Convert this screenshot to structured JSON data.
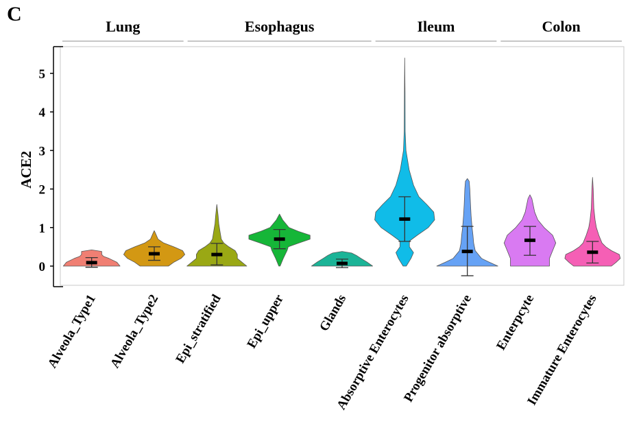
{
  "panel_label": "C",
  "chart_data": {
    "type": "violin",
    "ylabel": "ACE2",
    "ylim": [
      -0.55,
      5.6
    ],
    "yticks": [
      0,
      1,
      2,
      3,
      4,
      5
    ],
    "groups": [
      {
        "label": "Lung",
        "categories": [
          "Alveola_Type1",
          "Alveola_Type2"
        ]
      },
      {
        "label": "Esophagus",
        "categories": [
          "Epi_stratified",
          "Epi_upper",
          "Glands"
        ]
      },
      {
        "label": "Ileum",
        "categories": [
          "Absorptive Enterocytes",
          "Progenitor absorptive"
        ]
      },
      {
        "label": "Colon",
        "categories": [
          "Enterpcyte",
          "Immature Enterocytes"
        ]
      }
    ],
    "series": [
      {
        "category": "Alveola_Type1",
        "color": "#f07f73",
        "mean": 0.09,
        "err_low": -0.03,
        "err_high": 0.22,
        "shape": [
          [
            0.0,
            0.9
          ],
          [
            0.1,
            0.8
          ],
          [
            0.2,
            0.55
          ],
          [
            0.25,
            0.38
          ],
          [
            0.3,
            0.32
          ],
          [
            0.38,
            0.32
          ],
          [
            0.42,
            0.0
          ]
        ]
      },
      {
        "category": "Alveola_Type2",
        "color": "#d39813",
        "mean": 0.32,
        "err_low": 0.15,
        "err_high": 0.5,
        "shape": [
          [
            0.0,
            0.45
          ],
          [
            0.1,
            0.62
          ],
          [
            0.2,
            0.85
          ],
          [
            0.3,
            0.97
          ],
          [
            0.4,
            0.9
          ],
          [
            0.5,
            0.62
          ],
          [
            0.6,
            0.3
          ],
          [
            0.7,
            0.12
          ],
          [
            0.85,
            0.04
          ],
          [
            0.92,
            0.0
          ]
        ]
      },
      {
        "category": "Epi_stratified",
        "color": "#9aa814",
        "mean": 0.3,
        "err_low": 0.03,
        "err_high": 0.59,
        "shape": [
          [
            0.0,
            0.95
          ],
          [
            0.1,
            0.8
          ],
          [
            0.2,
            0.65
          ],
          [
            0.3,
            0.65
          ],
          [
            0.4,
            0.58
          ],
          [
            0.5,
            0.38
          ],
          [
            0.6,
            0.22
          ],
          [
            0.7,
            0.14
          ],
          [
            0.9,
            0.1
          ],
          [
            1.1,
            0.06
          ],
          [
            1.3,
            0.04
          ],
          [
            1.6,
            0.0
          ]
        ]
      },
      {
        "category": "Epi_upper",
        "color": "#16b638",
        "mean": 0.7,
        "err_low": 0.45,
        "err_high": 0.95,
        "shape": [
          [
            0.0,
            0.02
          ],
          [
            0.2,
            0.12
          ],
          [
            0.4,
            0.24
          ],
          [
            0.5,
            0.28
          ],
          [
            0.6,
            0.62
          ],
          [
            0.7,
            0.97
          ],
          [
            0.8,
            0.97
          ],
          [
            0.9,
            0.6
          ],
          [
            1.0,
            0.3
          ],
          [
            1.2,
            0.1
          ],
          [
            1.35,
            0.0
          ]
        ]
      },
      {
        "category": "Glands",
        "color": "#1bb497",
        "mean": 0.07,
        "err_low": -0.04,
        "err_high": 0.18,
        "shape": [
          [
            0.0,
            0.97
          ],
          [
            0.1,
            0.8
          ],
          [
            0.2,
            0.6
          ],
          [
            0.28,
            0.45
          ],
          [
            0.34,
            0.3
          ],
          [
            0.38,
            0.0
          ]
        ]
      },
      {
        "category": "Absorptive Enterocytes",
        "color": "#10bce8",
        "mean": 1.22,
        "err_low": 0.64,
        "err_high": 1.8,
        "shape": [
          [
            0.0,
            0.05
          ],
          [
            0.2,
            0.2
          ],
          [
            0.35,
            0.28
          ],
          [
            0.5,
            0.15
          ],
          [
            0.65,
            0.15
          ],
          [
            0.8,
            0.4
          ],
          [
            1.0,
            0.75
          ],
          [
            1.2,
            0.95
          ],
          [
            1.4,
            0.92
          ],
          [
            1.6,
            0.7
          ],
          [
            1.8,
            0.45
          ],
          [
            2.1,
            0.28
          ],
          [
            2.5,
            0.14
          ],
          [
            3.0,
            0.04
          ],
          [
            3.5,
            0.015
          ],
          [
            4.5,
            0.01
          ],
          [
            5.4,
            0.0
          ]
        ]
      },
      {
        "category": "Progenitor absorptive",
        "color": "#66a2f5",
        "mean": 0.38,
        "err_low": -0.25,
        "err_high": 1.03,
        "shape": [
          [
            0.0,
            0.97
          ],
          [
            0.1,
            0.7
          ],
          [
            0.2,
            0.45
          ],
          [
            0.4,
            0.25
          ],
          [
            0.6,
            0.2
          ],
          [
            0.8,
            0.18
          ],
          [
            1.0,
            0.15
          ],
          [
            1.3,
            0.12
          ],
          [
            1.6,
            0.1
          ],
          [
            2.0,
            0.08
          ],
          [
            2.2,
            0.06
          ],
          [
            2.27,
            0.0
          ]
        ]
      },
      {
        "category": "Enterpcyte",
        "color": "#d97af2",
        "mean": 0.67,
        "err_low": 0.28,
        "err_high": 1.03,
        "shape": [
          [
            0.0,
            0.62
          ],
          [
            0.2,
            0.62
          ],
          [
            0.4,
            0.72
          ],
          [
            0.6,
            0.82
          ],
          [
            0.8,
            0.72
          ],
          [
            1.0,
            0.45
          ],
          [
            1.2,
            0.25
          ],
          [
            1.4,
            0.15
          ],
          [
            1.6,
            0.1
          ],
          [
            1.75,
            0.06
          ],
          [
            1.85,
            0.0
          ]
        ]
      },
      {
        "category": "Immature Enterocytes",
        "color": "#f55fb5",
        "mean": 0.36,
        "err_low": 0.08,
        "err_high": 0.64,
        "shape": [
          [
            0.0,
            0.6
          ],
          [
            0.1,
            0.75
          ],
          [
            0.2,
            0.88
          ],
          [
            0.3,
            0.85
          ],
          [
            0.4,
            0.6
          ],
          [
            0.5,
            0.42
          ],
          [
            0.6,
            0.3
          ],
          [
            0.8,
            0.2
          ],
          [
            1.0,
            0.12
          ],
          [
            1.2,
            0.08
          ],
          [
            1.5,
            0.04
          ],
          [
            2.0,
            0.02
          ],
          [
            2.3,
            0.0
          ]
        ]
      }
    ]
  }
}
